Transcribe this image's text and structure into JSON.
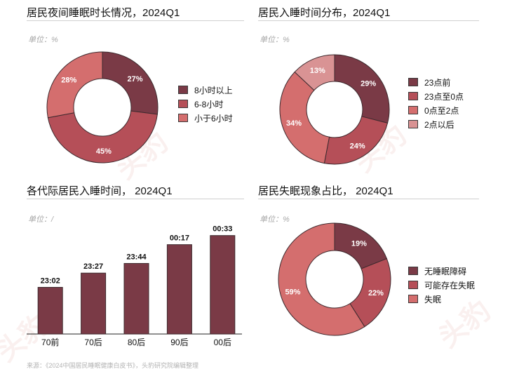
{
  "colors": {
    "dark": "#7a3a46",
    "medium": "#b54f58",
    "light": "#d46e6e",
    "pale": "#d99394",
    "rule": "#cfcfcf",
    "unit_text": "#a9a9a9",
    "watermark": "#c0392b"
  },
  "panels": {
    "sleep_duration": {
      "title": "居民夜间睡眠时长情况，2024Q1",
      "unit": "单位：%"
    },
    "sleep_time_dist": {
      "title": "居民入睡时间分布，2024Q1",
      "unit": "单位：%"
    },
    "generation_sleep": {
      "title": "各代际居民入睡时间， 2024Q1",
      "unit": "单位：/"
    },
    "insomnia": {
      "title": "居民失眠现象占比， 2024Q1",
      "unit": "单位：%"
    }
  },
  "source": "来源：《2024中国居民睡眠健康白皮书》，头豹研究院编辑整理",
  "watermark_text": "头豹",
  "watermark_sub": "LeadLeo",
  "chart_data": [
    {
      "id": "sleep_duration",
      "type": "pie",
      "donut": true,
      "labels": [
        "8小时以上",
        "6-8小时",
        "小于6小时"
      ],
      "values": [
        27,
        45,
        28
      ],
      "value_labels": [
        "27%",
        "45%",
        "28%"
      ],
      "colors": [
        "#7a3a46",
        "#b54f58",
        "#d46e6e"
      ],
      "legend_position": "right"
    },
    {
      "id": "sleep_time_dist",
      "type": "pie",
      "donut": true,
      "labels": [
        "23点前",
        "23点至0点",
        "0点至2点",
        "2点以后"
      ],
      "values": [
        29,
        24,
        34,
        13
      ],
      "value_labels": [
        "29%",
        "24%",
        "34%",
        "13%"
      ],
      "colors": [
        "#7a3a46",
        "#b54f58",
        "#d46e6e",
        "#d99394"
      ],
      "legend_position": "right"
    },
    {
      "id": "generation_sleep",
      "type": "bar",
      "categories": [
        "70前",
        "70后",
        "80后",
        "90后",
        "00后"
      ],
      "values": [
        1382,
        1407,
        1424,
        1457,
        1473
      ],
      "value_labels": [
        "23:02",
        "23:27",
        "23:44",
        "00:17",
        "00:33"
      ],
      "value_unit": "minutes after midnight of the previous day (23:02 = 1382)",
      "ylim": [
        1300,
        1480
      ],
      "color": "#7a3a46",
      "grid": false,
      "legend": false
    },
    {
      "id": "insomnia",
      "type": "pie",
      "donut": true,
      "labels": [
        "无睡眠障碍",
        "可能存在失眠",
        "失眠"
      ],
      "values": [
        19,
        22,
        59
      ],
      "value_labels": [
        "19%",
        "22%",
        "59%"
      ],
      "colors": [
        "#7a3a46",
        "#b54f58",
        "#d46e6e"
      ],
      "legend_position": "right"
    }
  ]
}
